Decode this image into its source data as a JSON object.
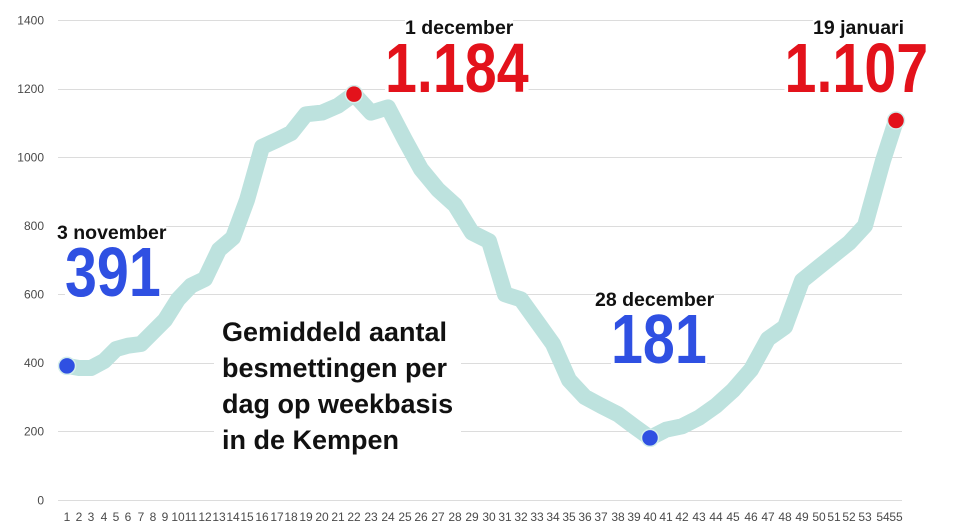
{
  "chart_data": {
    "type": "line",
    "title_lines": [
      "Gemiddeld aantal",
      "besmettingen per",
      "dag op weekbasis",
      "in de Kempen"
    ],
    "x": [
      1,
      2,
      3,
      4,
      5,
      6,
      7,
      8,
      9,
      10,
      11,
      12,
      13,
      14,
      15,
      16,
      17,
      18,
      19,
      20,
      21,
      22,
      23,
      24,
      25,
      26,
      27,
      28,
      29,
      30,
      31,
      32,
      33,
      34,
      35,
      36,
      37,
      38,
      39,
      40,
      41,
      42,
      43,
      44,
      45,
      46,
      47,
      48,
      49,
      50,
      51,
      52,
      53,
      54,
      55
    ],
    "values": [
      391,
      385,
      385,
      405,
      440,
      450,
      455,
      490,
      525,
      585,
      625,
      645,
      730,
      765,
      875,
      1030,
      1050,
      1070,
      1125,
      1130,
      1150,
      1184,
      1130,
      1145,
      1050,
      965,
      905,
      860,
      780,
      755,
      600,
      585,
      520,
      455,
      350,
      300,
      275,
      250,
      215,
      181,
      205,
      215,
      240,
      275,
      320,
      380,
      470,
      505,
      640,
      680,
      715,
      750,
      800,
      990,
      1107
    ],
    "ylim": [
      0,
      1400
    ],
    "yticks": [
      0,
      200,
      400,
      600,
      800,
      1000,
      1200,
      1400
    ],
    "grid": true,
    "line_color": "#bde2de",
    "annotations": [
      {
        "x": 1,
        "value": 391,
        "label": "3 november",
        "value_label": "391",
        "color": "#2f50e2"
      },
      {
        "x": 22,
        "value": 1184,
        "label": "1 december",
        "value_label": "1.184",
        "color": "#e3121b"
      },
      {
        "x": 40,
        "value": 181,
        "label": "28 december",
        "value_label": "181",
        "color": "#2f50e2"
      },
      {
        "x": 55,
        "value": 1107,
        "label": "19 januari",
        "value_label": "1.107",
        "color": "#e3121b"
      }
    ]
  }
}
